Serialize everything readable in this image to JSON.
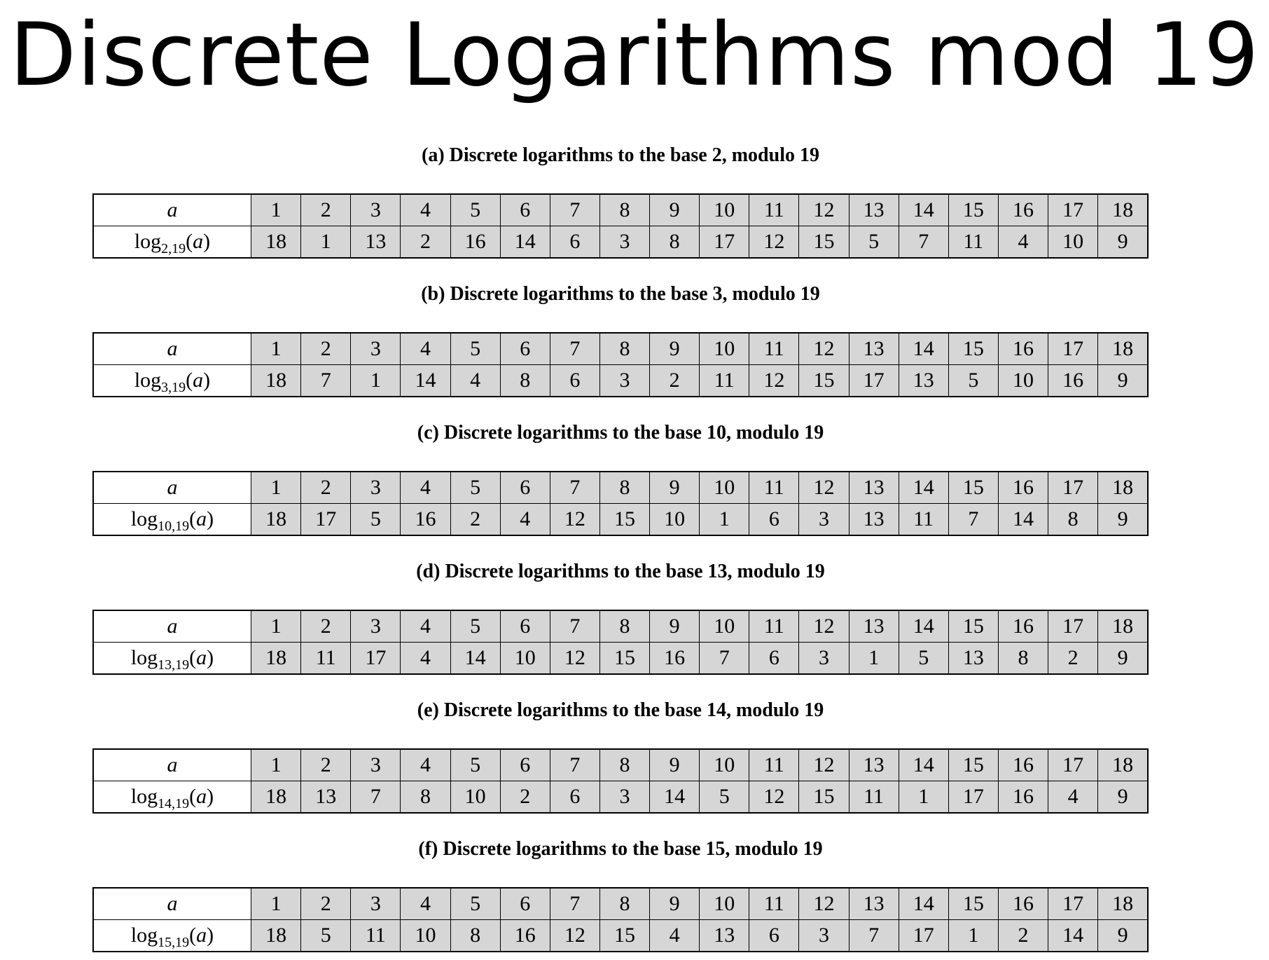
{
  "title": "Discrete Logarithms mod 19",
  "row_label_a": "a",
  "tables": [
    {
      "caption": "(a) Discrete logarithms to the base 2, modulo 19",
      "log_prefix": "log",
      "subscript": "2,19",
      "log_suffix": "(a)",
      "a_values": [
        1,
        2,
        3,
        4,
        5,
        6,
        7,
        8,
        9,
        10,
        11,
        12,
        13,
        14,
        15,
        16,
        17,
        18
      ],
      "log_values": [
        18,
        1,
        13,
        2,
        16,
        14,
        6,
        3,
        8,
        17,
        12,
        15,
        5,
        7,
        11,
        4,
        10,
        9
      ]
    },
    {
      "caption": "(b) Discrete logarithms to the base 3, modulo 19",
      "log_prefix": "log",
      "subscript": "3,19",
      "log_suffix": "(a)",
      "a_values": [
        1,
        2,
        3,
        4,
        5,
        6,
        7,
        8,
        9,
        10,
        11,
        12,
        13,
        14,
        15,
        16,
        17,
        18
      ],
      "log_values": [
        18,
        7,
        1,
        14,
        4,
        8,
        6,
        3,
        2,
        11,
        12,
        15,
        17,
        13,
        5,
        10,
        16,
        9
      ]
    },
    {
      "caption": "(c) Discrete logarithms to the base 10, modulo 19",
      "log_prefix": "log",
      "subscript": "10,19",
      "log_suffix": "(a)",
      "a_values": [
        1,
        2,
        3,
        4,
        5,
        6,
        7,
        8,
        9,
        10,
        11,
        12,
        13,
        14,
        15,
        16,
        17,
        18
      ],
      "log_values": [
        18,
        17,
        5,
        16,
        2,
        4,
        12,
        15,
        10,
        1,
        6,
        3,
        13,
        11,
        7,
        14,
        8,
        9
      ]
    },
    {
      "caption": "(d) Discrete logarithms to the base 13, modulo 19",
      "log_prefix": "log",
      "subscript": "13,19",
      "log_suffix": "(a)",
      "a_values": [
        1,
        2,
        3,
        4,
        5,
        6,
        7,
        8,
        9,
        10,
        11,
        12,
        13,
        14,
        15,
        16,
        17,
        18
      ],
      "log_values": [
        18,
        11,
        17,
        4,
        14,
        10,
        12,
        15,
        16,
        7,
        6,
        3,
        1,
        5,
        13,
        8,
        2,
        9
      ]
    },
    {
      "caption": "(e) Discrete logarithms to the base 14, modulo 19",
      "log_prefix": "log",
      "subscript": "14,19",
      "log_suffix": "(a)",
      "a_values": [
        1,
        2,
        3,
        4,
        5,
        6,
        7,
        8,
        9,
        10,
        11,
        12,
        13,
        14,
        15,
        16,
        17,
        18
      ],
      "log_values": [
        18,
        13,
        7,
        8,
        10,
        2,
        6,
        3,
        14,
        5,
        12,
        15,
        11,
        1,
        17,
        16,
        4,
        9
      ]
    },
    {
      "caption": "(f) Discrete logarithms to the base 15, modulo 19",
      "log_prefix": "log",
      "subscript": "15,19",
      "log_suffix": "(a)",
      "a_values": [
        1,
        2,
        3,
        4,
        5,
        6,
        7,
        8,
        9,
        10,
        11,
        12,
        13,
        14,
        15,
        16,
        17,
        18
      ],
      "log_values": [
        18,
        5,
        11,
        10,
        8,
        16,
        12,
        15,
        4,
        13,
        6,
        3,
        7,
        17,
        1,
        2,
        14,
        9
      ]
    }
  ]
}
